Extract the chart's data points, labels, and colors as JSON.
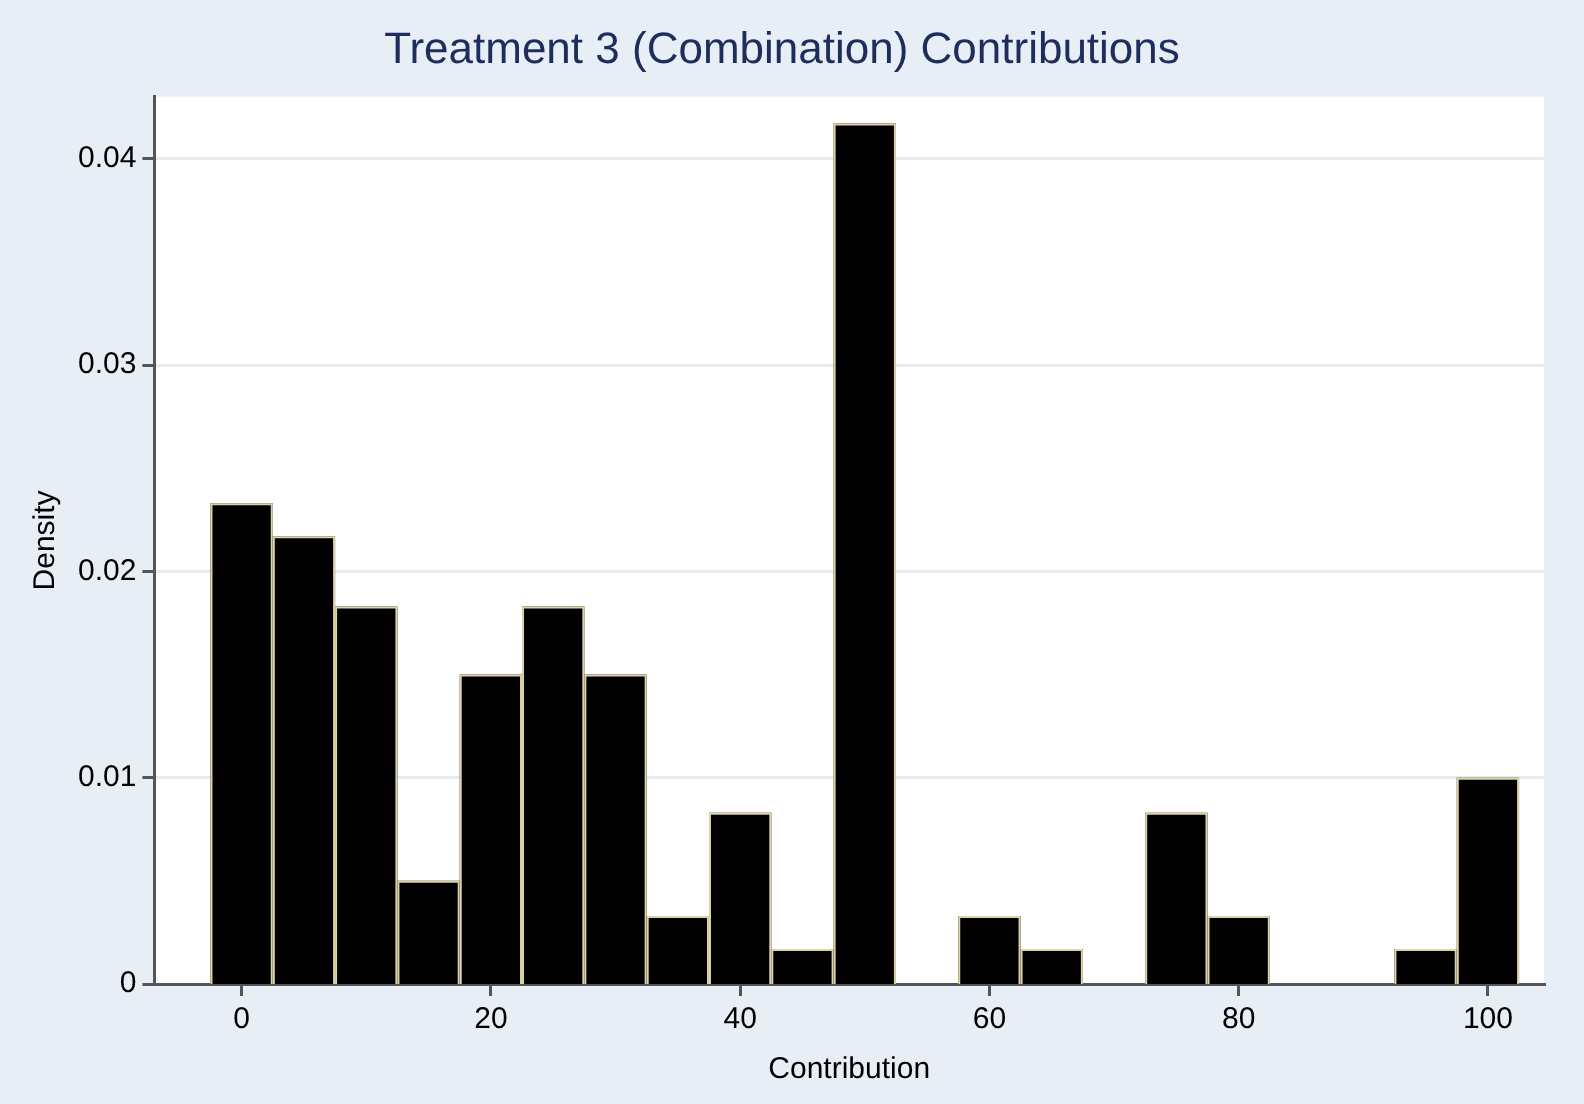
{
  "chart_data": {
    "type": "histogram",
    "title": "Treatment 3 (Combination) Contributions",
    "xlabel": "Contribution",
    "ylabel": "Density",
    "bins": [
      -2.5,
      2.5,
      7.5,
      12.5,
      17.5,
      22.5,
      27.5,
      32.5,
      37.5,
      42.5,
      47.5,
      52.5,
      57.5,
      62.5,
      67.5,
      72.5,
      77.5,
      82.5,
      87.5,
      92.5,
      97.5,
      102.5
    ],
    "values": [
      0.0233,
      0.0217,
      0.0183,
      0.005,
      0.015,
      0.0183,
      0.015,
      0.0033,
      0.0083,
      0.0017,
      0.0417,
      0,
      0.0033,
      0.0017,
      0,
      0.0083,
      0.0033,
      0,
      0,
      0.0017,
      0.01
    ],
    "color": "#000000",
    "xlim": [
      -7,
      104.5
    ],
    "xticks": [
      0,
      20,
      40,
      60,
      80,
      100
    ],
    "ylim": [
      0,
      0.043
    ],
    "yticks": [
      0,
      0.01,
      0.02,
      0.03,
      0.04
    ],
    "grid": "y",
    "legend": false
  }
}
